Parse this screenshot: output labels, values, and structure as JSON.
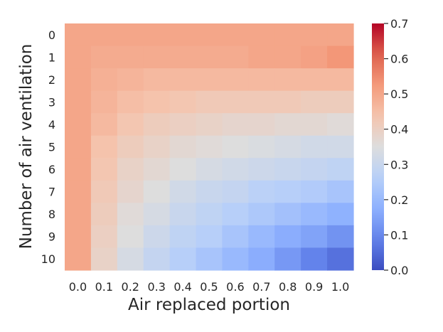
{
  "chart_data": {
    "type": "heatmap",
    "xlabel": "Air replaced portion",
    "ylabel": "Number of air ventilation",
    "x_tick_labels": [
      "0.0",
      "0.1",
      "0.2",
      "0.3",
      "0.4",
      "0.5",
      "0.6",
      "0.7",
      "0.8",
      "0.9",
      "1.0"
    ],
    "y_tick_labels": [
      "0",
      "1",
      "2",
      "3",
      "4",
      "5",
      "6",
      "7",
      "8",
      "9",
      "10"
    ],
    "colormap": "coolwarm",
    "vmin": 0.0,
    "vmax": 0.7,
    "colorbar_ticks": [
      "0.0",
      "0.1",
      "0.2",
      "0.3",
      "0.4",
      "0.5",
      "0.6",
      "0.7"
    ],
    "values": [
      [
        0.5,
        0.5,
        0.5,
        0.5,
        0.5,
        0.5,
        0.5,
        0.5,
        0.5,
        0.5,
        0.5
      ],
      [
        0.5,
        0.49,
        0.49,
        0.49,
        0.49,
        0.49,
        0.49,
        0.5,
        0.5,
        0.51,
        0.53
      ],
      [
        0.5,
        0.48,
        0.47,
        0.46,
        0.46,
        0.46,
        0.46,
        0.46,
        0.46,
        0.46,
        0.46
      ],
      [
        0.5,
        0.47,
        0.45,
        0.44,
        0.43,
        0.42,
        0.42,
        0.42,
        0.42,
        0.41,
        0.41
      ],
      [
        0.5,
        0.46,
        0.43,
        0.41,
        0.4,
        0.39,
        0.38,
        0.38,
        0.37,
        0.37,
        0.36
      ],
      [
        0.5,
        0.44,
        0.41,
        0.39,
        0.37,
        0.36,
        0.35,
        0.34,
        0.33,
        0.32,
        0.32
      ],
      [
        0.5,
        0.43,
        0.39,
        0.37,
        0.35,
        0.33,
        0.32,
        0.31,
        0.3,
        0.29,
        0.28
      ],
      [
        0.5,
        0.42,
        0.38,
        0.35,
        0.32,
        0.3,
        0.29,
        0.27,
        0.26,
        0.25,
        0.23
      ],
      [
        0.5,
        0.41,
        0.36,
        0.33,
        0.3,
        0.28,
        0.26,
        0.24,
        0.22,
        0.2,
        0.18
      ],
      [
        0.5,
        0.4,
        0.35,
        0.31,
        0.28,
        0.26,
        0.23,
        0.2,
        0.17,
        0.15,
        0.12
      ],
      [
        0.5,
        0.39,
        0.33,
        0.29,
        0.26,
        0.23,
        0.2,
        0.17,
        0.13,
        0.09,
        0.06
      ]
    ]
  }
}
